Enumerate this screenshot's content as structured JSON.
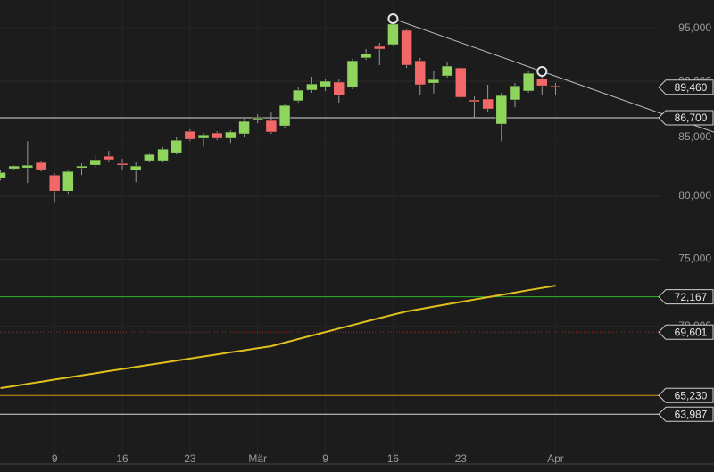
{
  "chart_data": {
    "type": "candlestick",
    "log_scale": true,
    "grid": true,
    "categories": [
      null,
      null,
      null,
      null,
      "9",
      null,
      null,
      null,
      null,
      "16",
      null,
      null,
      null,
      null,
      "23",
      null,
      null,
      null,
      null,
      "Mär",
      null,
      null,
      null,
      null,
      "9",
      null,
      null,
      null,
      null,
      "16",
      null,
      null,
      null,
      null,
      "23",
      null,
      null,
      null,
      null,
      null,
      null,
      "Apr"
    ],
    "open": [
      81460,
      82290,
      82360,
      82820,
      81760,
      80420,
      82360,
      82590,
      83350,
      82740,
      82140,
      82970,
      82970,
      83650,
      85510,
      84890,
      85360,
      84890,
      85280,
      86540,
      86460,
      85980,
      88220,
      89190,
      89510,
      89930,
      89430,
      92180,
      93280,
      93450,
      94830,
      91920,
      89840,
      90500,
      91250,
      88300,
      88380,
      86140,
      88300,
      89110,
      90260,
      89590
    ],
    "high": [
      82210,
      82590,
      84650,
      82970,
      81910,
      82210,
      82740,
      83430,
      83810,
      83120,
      82820,
      83580,
      84110,
      85040,
      85670,
      85360,
      85510,
      85590,
      86610,
      87010,
      87170,
      87970,
      89430,
      90420,
      90260,
      90170,
      92090,
      93020,
      93620,
      95960,
      95000,
      92180,
      90920,
      91750,
      91420,
      88620,
      89680,
      88950,
      89840,
      90920,
      90920,
      89840
    ],
    "low": [
      81310,
      82210,
      81090,
      82060,
      79540,
      80200,
      81760,
      82360,
      82820,
      82210,
      81160,
      82820,
      82820,
      83500,
      84650,
      84190,
      84730,
      84500,
      85040,
      86220,
      85280,
      85830,
      88060,
      88950,
      89110,
      88060,
      89270,
      92010,
      91500,
      93280,
      91250,
      88780,
      88870,
      90340,
      88380,
      86690,
      87250,
      84650,
      87650,
      88950,
      88780,
      88700
    ],
    "close": [
      81980,
      82520,
      82590,
      82210,
      80420,
      82060,
      82520,
      83050,
      83050,
      82590,
      82520,
      83500,
      83960,
      84730,
      84810,
      85200,
      84890,
      85440,
      86380,
      86690,
      85440,
      87810,
      89190,
      89760,
      90010,
      88700,
      91920,
      92600,
      93020,
      95440,
      91500,
      89680,
      90170,
      91420,
      88540,
      88140,
      87490,
      88700,
      89590,
      90750,
      89590,
      89460
    ],
    "up_color": "#8fd45c",
    "down_color": "#f26767",
    "lines": [
      {
        "color": "#e0c020",
        "values": [
          65720,
          65860,
          66010,
          66150,
          66300,
          66440,
          66590,
          66730,
          66880,
          67020,
          67170,
          67310,
          67450,
          67600,
          67740,
          67890,
          68030,
          68180,
          68320,
          68470,
          68610,
          68860,
          69110,
          69360,
          69610,
          69860,
          70110,
          70360,
          70610,
          70860,
          71100,
          71270,
          71450,
          71620,
          71790,
          71970,
          72140,
          72310,
          72480,
          72660,
          72830,
          73000
        ]
      }
    ],
    "trend_line": {
      "x": [
        29,
        40
      ],
      "values": [
        95960,
        90920
      ],
      "color": "#bdbdbd"
    },
    "levels": [
      {
        "value": 86700,
        "label": "86,700",
        "color": "#d8d8d8",
        "style": "solid"
      },
      {
        "value": 72167,
        "label": "72,167",
        "color": "#2db52d",
        "style": "solid"
      },
      {
        "value": 69601,
        "label": "69,601",
        "color": "#9b2a2a",
        "style": "dotted"
      },
      {
        "value": 65230,
        "label": "65,230",
        "color": "#d8901c",
        "style": "solid"
      },
      {
        "value": 63987,
        "label": "63,987",
        "color": "#d8d8d8",
        "style": "solid"
      }
    ],
    "last_price": {
      "value": 89460,
      "label": "89,460"
    },
    "ylim": [
      60920,
      97820
    ],
    "yticks": [
      {
        "value": 70000,
        "label": "70,000"
      },
      {
        "value": 75000,
        "label": "75,000"
      },
      {
        "value": 80000,
        "label": "80,000"
      },
      {
        "value": 85000,
        "label": "85,000"
      },
      {
        "value": 90000,
        "label": "90,000"
      },
      {
        "value": 95000,
        "label": "95,000"
      }
    ]
  }
}
